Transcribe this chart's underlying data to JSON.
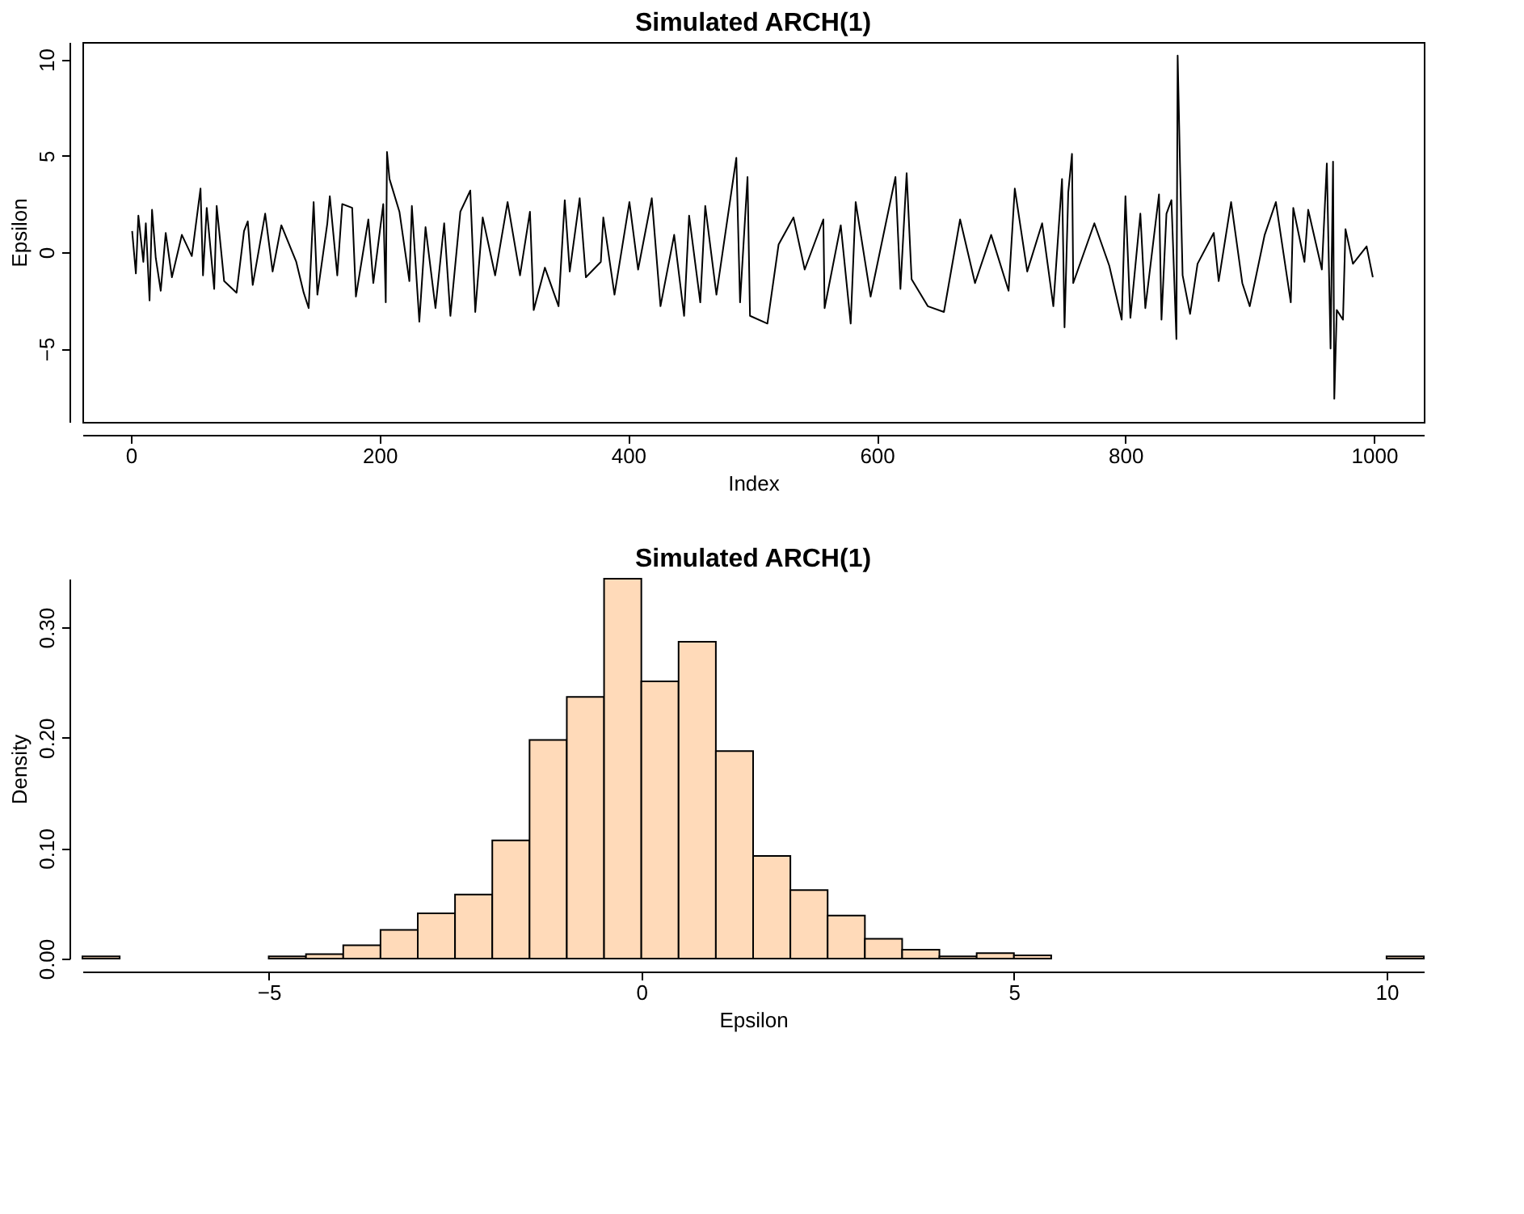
{
  "chart_data": [
    {
      "type": "line",
      "title": "Simulated ARCH(1)",
      "xlabel": "Index",
      "ylabel": "Epsilon",
      "grid": false,
      "xlim": [
        -39,
        1040
      ],
      "ylim": [
        -8.8,
        10.9
      ],
      "xticks": [
        0,
        200,
        400,
        600,
        800,
        {
          "value": 1000,
          "label": "1000"
        }
      ],
      "yticks": [
        -5,
        0,
        5,
        10
      ],
      "series": [
        {
          "color": "#000000",
          "x": [
            1,
            4,
            6,
            10,
            12,
            15,
            17,
            20,
            24,
            28,
            33,
            41,
            49,
            56,
            58,
            61,
            67,
            69,
            75,
            85,
            91,
            94,
            98,
            108,
            114,
            121,
            133,
            139,
            143,
            147,
            150,
            158,
            160,
            166,
            170,
            178,
            181,
            191,
            195,
            203,
            205,
            206,
            208,
            216,
            224,
            226,
            232,
            237,
            245,
            252,
            257,
            265,
            273,
            277,
            283,
            293,
            303,
            313,
            321,
            324,
            333,
            344,
            349,
            353,
            361,
            366,
            378,
            380,
            389,
            401,
            408,
            419,
            426,
            437,
            445,
            449,
            458,
            462,
            471,
            487,
            490,
            496,
            498,
            512,
            521,
            533,
            542,
            557,
            558,
            571,
            579,
            583,
            595,
            615,
            619,
            624,
            628,
            641,
            654,
            667,
            679,
            692,
            706,
            711,
            721,
            733,
            742,
            749,
            751,
            754,
            757,
            758,
            775,
            787,
            797,
            800,
            804,
            812,
            816,
            827,
            829,
            833,
            837,
            841,
            842,
            844,
            846,
            852,
            858,
            871,
            875,
            885,
            894,
            900,
            912,
            921,
            933,
            935,
            944,
            947,
            958,
            962,
            965,
            967,
            968,
            970,
            975,
            977,
            983,
            994,
            999
          ],
          "values": [
            1.1,
            -1.1,
            1.9,
            -0.5,
            1.5,
            -2.5,
            2.2,
            -0.3,
            -2.0,
            1.0,
            -1.3,
            0.9,
            -0.2,
            3.3,
            -1.2,
            2.3,
            -1.9,
            2.4,
            -1.5,
            -2.1,
            1.1,
            1.6,
            -1.7,
            2.0,
            -1.0,
            1.4,
            -0.5,
            -2.1,
            -2.9,
            2.6,
            -2.2,
            1.5,
            2.9,
            -1.2,
            2.5,
            2.3,
            -2.3,
            1.7,
            -1.6,
            2.5,
            -2.6,
            5.2,
            3.8,
            2.1,
            -1.5,
            2.4,
            -3.6,
            1.3,
            -2.9,
            1.5,
            -3.3,
            2.1,
            3.2,
            -3.1,
            1.8,
            -1.2,
            2.6,
            -1.2,
            2.1,
            -3.0,
            -0.8,
            -2.8,
            2.7,
            -1.0,
            2.8,
            -1.3,
            -0.5,
            1.8,
            -2.2,
            2.6,
            -0.9,
            2.8,
            -2.8,
            0.9,
            -3.3,
            1.9,
            -2.6,
            2.4,
            -2.2,
            4.9,
            -2.6,
            3.9,
            -3.3,
            -3.7,
            0.4,
            1.8,
            -0.9,
            1.7,
            -2.9,
            1.4,
            -3.7,
            2.6,
            -2.3,
            3.9,
            -1.9,
            4.1,
            -1.4,
            -2.8,
            -3.1,
            1.7,
            -1.6,
            0.9,
            -2.0,
            3.3,
            -1.0,
            1.5,
            -2.8,
            3.8,
            -3.9,
            3.1,
            5.1,
            -1.6,
            1.5,
            -0.7,
            -3.5,
            2.9,
            -3.4,
            2.0,
            -2.9,
            3.0,
            -3.5,
            2.0,
            2.7,
            -4.5,
            10.2,
            4.2,
            -1.2,
            -3.2,
            -0.6,
            1.0,
            -1.5,
            2.6,
            -1.6,
            -2.8,
            0.9,
            2.6,
            -2.6,
            2.3,
            -0.5,
            2.2,
            -0.9,
            4.6,
            -5.0,
            4.7,
            -7.6,
            -3.0,
            -3.5,
            1.2,
            -0.6,
            0.3,
            -1.3
          ]
        }
      ]
    },
    {
      "type": "histogram",
      "title": "Simulated ARCH(1)",
      "xlabel": "Epsilon",
      "ylabel": "Density",
      "grid": false,
      "color": "#ffdab9",
      "xlim": [
        -7.5,
        10.5
      ],
      "ylim": [
        0,
        0.344
      ],
      "xticks": [
        -5,
        0,
        5,
        10
      ],
      "yticks": [
        {
          "value": 0,
          "label": "0.00"
        },
        {
          "value": 0.1,
          "label": "0.10"
        },
        {
          "value": 0.2,
          "label": "0.20"
        },
        {
          "value": 0.3,
          "label": "0.30"
        }
      ],
      "bins": [
        -7.5,
        -7,
        -6.5,
        -6,
        -5.5,
        -5,
        -4.5,
        -4,
        -3.5,
        -3,
        -2.5,
        -2,
        -1.5,
        -1,
        -0.5,
        0,
        0.5,
        1,
        1.5,
        2,
        2.5,
        3,
        3.5,
        4,
        4.5,
        5,
        5.5,
        6,
        6.5,
        7,
        7.5,
        8,
        8.5,
        9,
        9.5,
        10,
        10.5
      ],
      "values": [
        0.002,
        null,
        null,
        null,
        null,
        0.002,
        0.004,
        0.012,
        0.026,
        0.041,
        0.058,
        0.107,
        0.198,
        0.237,
        0.344,
        0.251,
        0.287,
        0.188,
        0.093,
        0.062,
        0.039,
        0.018,
        0.008,
        0.002,
        0.005,
        0.003,
        null,
        null,
        null,
        null,
        null,
        null,
        null,
        null,
        null,
        0.002
      ]
    }
  ]
}
